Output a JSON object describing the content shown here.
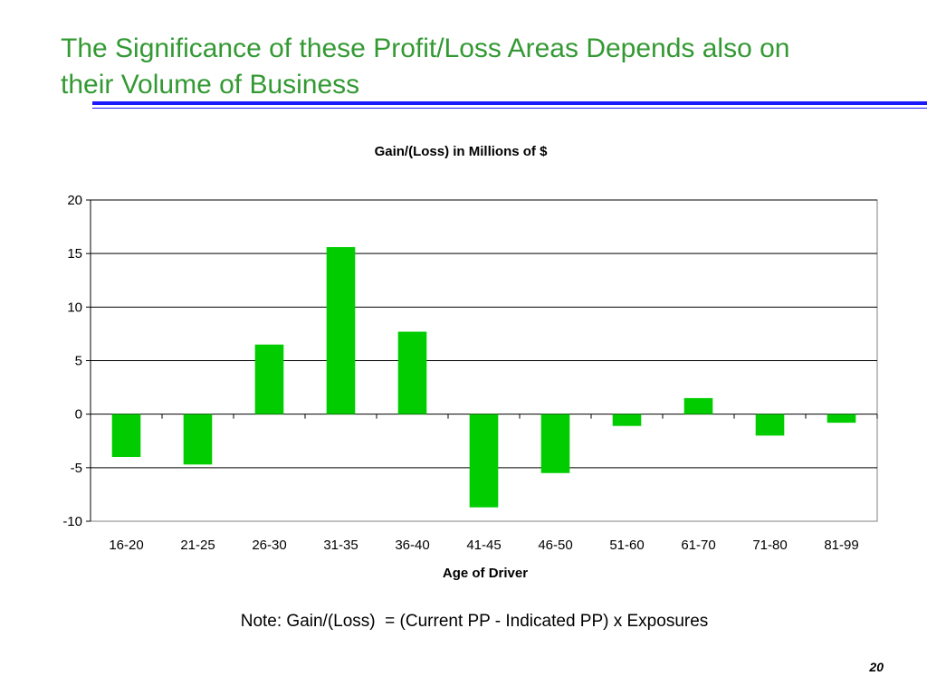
{
  "slide": {
    "title_line1": "The Significance of these Profit/Loss Areas Depends also on",
    "title_line2": "their Volume of Business",
    "title_color": "#339933",
    "rule_color": "#1a1aff",
    "note": "Note: Gain/(Loss)  = (Current PP - Indicated PP) x Exposures",
    "page_number": "20"
  },
  "chart_data": {
    "type": "bar",
    "title": "Gain/(Loss) in Millions of $",
    "xlabel": "Age of Driver",
    "ylabel": "",
    "categories": [
      "16-20",
      "21-25",
      "26-30",
      "31-35",
      "36-40",
      "41-45",
      "46-50",
      "51-60",
      "61-70",
      "71-80",
      "81-99"
    ],
    "values": [
      -4.0,
      -4.7,
      6.5,
      15.6,
      7.7,
      -8.7,
      -5.5,
      -1.1,
      1.5,
      -2.0,
      -0.8
    ],
    "ylim": [
      -10,
      20
    ],
    "yticks": [
      -10,
      -5,
      0,
      5,
      10,
      15,
      20
    ],
    "grid": true,
    "legend": "none",
    "bar_color": "#00cc00"
  }
}
